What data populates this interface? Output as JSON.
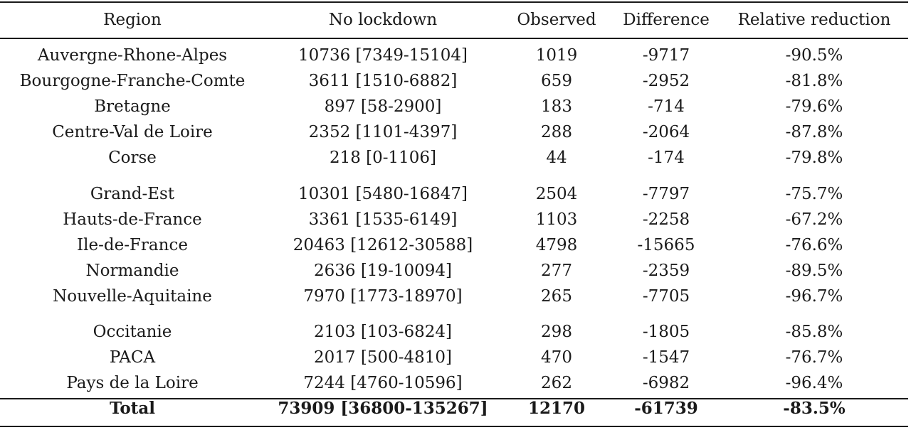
{
  "headers": {
    "region": "Region",
    "no_lockdown": "No lockdown",
    "observed": "Observed",
    "difference": "Difference",
    "relative_reduction": "Relative reduction"
  },
  "rows": [
    {
      "region": "Auvergne-Rhone-Alpes",
      "no_lockdown": "10736 [7349-15104]",
      "observed": "1019",
      "difference": "-9717",
      "relative_reduction": "-90.5%"
    },
    {
      "region": "Bourgogne-Franche-Comte",
      "no_lockdown": "3611 [1510-6882]",
      "observed": "659",
      "difference": "-2952",
      "relative_reduction": "-81.8%"
    },
    {
      "region": "Bretagne",
      "no_lockdown": "897 [58-2900]",
      "observed": "183",
      "difference": "-714",
      "relative_reduction": "-79.6%"
    },
    {
      "region": "Centre-Val de Loire",
      "no_lockdown": "2352 [1101-4397]",
      "observed": "288",
      "difference": "-2064",
      "relative_reduction": "-87.8%"
    },
    {
      "region": "Corse",
      "no_lockdown": "218 [0-1106]",
      "observed": "44",
      "difference": "-174",
      "relative_reduction": "-79.8%"
    },
    {
      "region": "Grand-Est",
      "no_lockdown": "10301 [5480-16847]",
      "observed": "2504",
      "difference": "-7797",
      "relative_reduction": "-75.7%"
    },
    {
      "region": "Hauts-de-France",
      "no_lockdown": "3361 [1535-6149]",
      "observed": "1103",
      "difference": "-2258",
      "relative_reduction": "-67.2%"
    },
    {
      "region": "Ile-de-France",
      "no_lockdown": "20463 [12612-30588]",
      "observed": "4798",
      "difference": "-15665",
      "relative_reduction": "-76.6%"
    },
    {
      "region": "Normandie",
      "no_lockdown": "2636 [19-10094]",
      "observed": "277",
      "difference": "-2359",
      "relative_reduction": "-89.5%"
    },
    {
      "region": "Nouvelle-Aquitaine",
      "no_lockdown": "7970 [1773-18970]",
      "observed": "265",
      "difference": "-7705",
      "relative_reduction": "-96.7%"
    },
    {
      "region": "Occitanie",
      "no_lockdown": "2103 [103-6824]",
      "observed": "298",
      "difference": "-1805",
      "relative_reduction": "-85.8%"
    },
    {
      "region": "PACA",
      "no_lockdown": "2017 [500-4810]",
      "observed": "470",
      "difference": "-1547",
      "relative_reduction": "-76.7%"
    },
    {
      "region": "Pays de la Loire",
      "no_lockdown": "7244 [4760-10596]",
      "observed": "262",
      "difference": "-6982",
      "relative_reduction": "-96.4%"
    }
  ],
  "total": {
    "region": "Total",
    "no_lockdown": "73909 [36800-135267]",
    "observed": "12170",
    "difference": "-61739",
    "relative_reduction": "-83.5%"
  }
}
